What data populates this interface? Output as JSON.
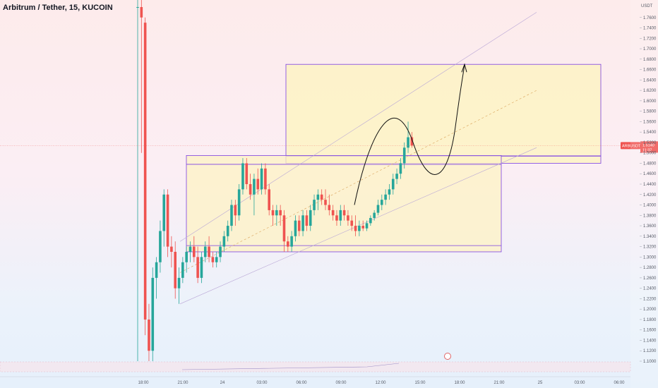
{
  "header": {
    "title": "Arbitrum / Tether, 15, KUCOIN"
  },
  "colors": {
    "up": "#26a69a",
    "down": "#ef5350",
    "zone_fill": "#fdf3c4",
    "zone_border": "#7b3fe4",
    "current_price": "#ef5350"
  },
  "chart_data": {
    "type": "candlestick",
    "title": "Arbitrum / Tether, 15, KUCOIN",
    "y_unit_label": "USDT",
    "ylim": [
      1.1,
      1.8
    ],
    "y_ticks": [
      "1.1000",
      "1.1200",
      "1.1400",
      "1.1600",
      "1.1800",
      "1.2000",
      "1.2200",
      "1.2400",
      "1.2600",
      "1.2800",
      "1.3000",
      "1.3200",
      "1.3400",
      "1.3600",
      "1.3800",
      "1.4000",
      "1.4200",
      "1.4400",
      "1.4600",
      "1.4800",
      "1.5000",
      "1.5200",
      "1.5400",
      "1.5600",
      "1.5800",
      "1.6000",
      "1.6200",
      "1.6400",
      "1.6600",
      "1.6800",
      "1.7000",
      "1.7200",
      "1.7400",
      "1.7600",
      "1.7800"
    ],
    "x_ticks": [
      "18:00",
      "21:00",
      "24",
      "03:00",
      "06:00",
      "09:00",
      "12:00",
      "15:00",
      "18:00",
      "21:00",
      "25",
      "03:00",
      "06:00"
    ],
    "current_price": {
      "symbol": "ARBUSDT",
      "value": "1.5140",
      "countdown": "11:37"
    },
    "candles": [
      {
        "x": "17:00",
        "o": 1.78,
        "h": 1.8,
        "l": 1.1,
        "c": 1.78
      },
      {
        "x": "17:15",
        "o": 1.78,
        "h": 1.8,
        "l": 1.5,
        "c": 1.76
      },
      {
        "x": "17:30",
        "o": 1.75,
        "h": 1.76,
        "l": 1.15,
        "c": 1.18
      },
      {
        "x": "17:45",
        "o": 1.18,
        "h": 1.21,
        "l": 1.1,
        "c": 1.12
      },
      {
        "x": "18:00",
        "o": 1.12,
        "h": 1.28,
        "l": 1.1,
        "c": 1.26
      },
      {
        "x": "18:15",
        "o": 1.26,
        "h": 1.3,
        "l": 1.22,
        "c": 1.29
      },
      {
        "x": "18:30",
        "o": 1.29,
        "h": 1.37,
        "l": 1.27,
        "c": 1.35
      },
      {
        "x": "18:45",
        "o": 1.35,
        "h": 1.43,
        "l": 1.32,
        "c": 1.42
      },
      {
        "x": "19:00",
        "o": 1.42,
        "h": 1.43,
        "l": 1.3,
        "c": 1.32
      },
      {
        "x": "19:15",
        "o": 1.32,
        "h": 1.34,
        "l": 1.28,
        "c": 1.31
      },
      {
        "x": "19:30",
        "o": 1.31,
        "h": 1.33,
        "l": 1.22,
        "c": 1.24
      },
      {
        "x": "19:45",
        "o": 1.24,
        "h": 1.28,
        "l": 1.21,
        "c": 1.26
      },
      {
        "x": "20:00",
        "o": 1.26,
        "h": 1.3,
        "l": 1.25,
        "c": 1.29
      },
      {
        "x": "20:15",
        "o": 1.29,
        "h": 1.32,
        "l": 1.27,
        "c": 1.31
      },
      {
        "x": "20:30",
        "o": 1.31,
        "h": 1.33,
        "l": 1.29,
        "c": 1.32
      },
      {
        "x": "20:45",
        "o": 1.32,
        "h": 1.34,
        "l": 1.29,
        "c": 1.3
      },
      {
        "x": "21:00",
        "o": 1.3,
        "h": 1.32,
        "l": 1.25,
        "c": 1.26
      },
      {
        "x": "21:15",
        "o": 1.26,
        "h": 1.31,
        "l": 1.25,
        "c": 1.3
      },
      {
        "x": "21:30",
        "o": 1.3,
        "h": 1.33,
        "l": 1.29,
        "c": 1.32
      },
      {
        "x": "21:45",
        "o": 1.32,
        "h": 1.34,
        "l": 1.29,
        "c": 1.3
      },
      {
        "x": "22:00",
        "o": 1.3,
        "h": 1.31,
        "l": 1.28,
        "c": 1.29
      },
      {
        "x": "22:15",
        "o": 1.29,
        "h": 1.31,
        "l": 1.28,
        "c": 1.3
      },
      {
        "x": "22:30",
        "o": 1.3,
        "h": 1.33,
        "l": 1.29,
        "c": 1.32
      },
      {
        "x": "22:45",
        "o": 1.32,
        "h": 1.35,
        "l": 1.31,
        "c": 1.34
      },
      {
        "x": "23:00",
        "o": 1.34,
        "h": 1.37,
        "l": 1.33,
        "c": 1.36
      },
      {
        "x": "23:15",
        "o": 1.36,
        "h": 1.41,
        "l": 1.35,
        "c": 1.4
      },
      {
        "x": "23:30",
        "o": 1.4,
        "h": 1.41,
        "l": 1.36,
        "c": 1.38
      },
      {
        "x": "23:45",
        "o": 1.38,
        "h": 1.44,
        "l": 1.37,
        "c": 1.43
      },
      {
        "x": "00:00",
        "o": 1.43,
        "h": 1.49,
        "l": 1.42,
        "c": 1.48
      },
      {
        "x": "00:15",
        "o": 1.48,
        "h": 1.49,
        "l": 1.43,
        "c": 1.44
      },
      {
        "x": "00:30",
        "o": 1.44,
        "h": 1.46,
        "l": 1.41,
        "c": 1.42
      },
      {
        "x": "00:45",
        "o": 1.42,
        "h": 1.46,
        "l": 1.38,
        "c": 1.45
      },
      {
        "x": "01:00",
        "o": 1.45,
        "h": 1.47,
        "l": 1.42,
        "c": 1.43
      },
      {
        "x": "01:15",
        "o": 1.43,
        "h": 1.48,
        "l": 1.42,
        "c": 1.47
      },
      {
        "x": "01:30",
        "o": 1.47,
        "h": 1.48,
        "l": 1.42,
        "c": 1.43
      },
      {
        "x": "01:45",
        "o": 1.43,
        "h": 1.44,
        "l": 1.38,
        "c": 1.39
      },
      {
        "x": "02:00",
        "o": 1.39,
        "h": 1.4,
        "l": 1.36,
        "c": 1.38
      },
      {
        "x": "02:15",
        "o": 1.38,
        "h": 1.4,
        "l": 1.36,
        "c": 1.39
      },
      {
        "x": "02:30",
        "o": 1.39,
        "h": 1.4,
        "l": 1.36,
        "c": 1.38
      },
      {
        "x": "02:45",
        "o": 1.38,
        "h": 1.39,
        "l": 1.31,
        "c": 1.33
      },
      {
        "x": "03:00",
        "o": 1.33,
        "h": 1.34,
        "l": 1.31,
        "c": 1.32
      },
      {
        "x": "03:15",
        "o": 1.32,
        "h": 1.35,
        "l": 1.31,
        "c": 1.34
      },
      {
        "x": "03:30",
        "o": 1.34,
        "h": 1.38,
        "l": 1.33,
        "c": 1.37
      },
      {
        "x": "03:45",
        "o": 1.37,
        "h": 1.38,
        "l": 1.34,
        "c": 1.35
      },
      {
        "x": "04:00",
        "o": 1.35,
        "h": 1.39,
        "l": 1.34,
        "c": 1.38
      },
      {
        "x": "04:15",
        "o": 1.38,
        "h": 1.39,
        "l": 1.35,
        "c": 1.36
      },
      {
        "x": "04:30",
        "o": 1.36,
        "h": 1.4,
        "l": 1.35,
        "c": 1.39
      },
      {
        "x": "04:45",
        "o": 1.39,
        "h": 1.42,
        "l": 1.38,
        "c": 1.41
      },
      {
        "x": "05:00",
        "o": 1.41,
        "h": 1.43,
        "l": 1.39,
        "c": 1.42
      },
      {
        "x": "05:15",
        "o": 1.42,
        "h": 1.43,
        "l": 1.4,
        "c": 1.41
      },
      {
        "x": "05:30",
        "o": 1.41,
        "h": 1.43,
        "l": 1.39,
        "c": 1.4
      },
      {
        "x": "05:45",
        "o": 1.4,
        "h": 1.42,
        "l": 1.38,
        "c": 1.39
      },
      {
        "x": "06:00",
        "o": 1.39,
        "h": 1.4,
        "l": 1.37,
        "c": 1.38
      },
      {
        "x": "06:15",
        "o": 1.38,
        "h": 1.39,
        "l": 1.36,
        "c": 1.37
      },
      {
        "x": "06:30",
        "o": 1.37,
        "h": 1.4,
        "l": 1.36,
        "c": 1.39
      },
      {
        "x": "06:45",
        "o": 1.39,
        "h": 1.4,
        "l": 1.37,
        "c": 1.38
      },
      {
        "x": "07:00",
        "o": 1.38,
        "h": 1.39,
        "l": 1.36,
        "c": 1.37
      },
      {
        "x": "07:15",
        "o": 1.37,
        "h": 1.38,
        "l": 1.35,
        "c": 1.36
      },
      {
        "x": "07:30",
        "o": 1.36,
        "h": 1.38,
        "l": 1.34,
        "c": 1.35
      },
      {
        "x": "07:45",
        "o": 1.35,
        "h": 1.37,
        "l": 1.34,
        "c": 1.36
      },
      {
        "x": "08:00",
        "o": 1.36,
        "h": 1.37,
        "l": 1.35,
        "c": 1.355
      },
      {
        "x": "08:15",
        "o": 1.355,
        "h": 1.37,
        "l": 1.35,
        "c": 1.365
      },
      {
        "x": "08:30",
        "o": 1.365,
        "h": 1.38,
        "l": 1.36,
        "c": 1.375
      },
      {
        "x": "08:45",
        "o": 1.375,
        "h": 1.39,
        "l": 1.37,
        "c": 1.385
      },
      {
        "x": "09:00",
        "o": 1.385,
        "h": 1.41,
        "l": 1.38,
        "c": 1.4
      },
      {
        "x": "09:15",
        "o": 1.4,
        "h": 1.42,
        "l": 1.39,
        "c": 1.41
      },
      {
        "x": "09:30",
        "o": 1.41,
        "h": 1.43,
        "l": 1.4,
        "c": 1.42
      },
      {
        "x": "09:45",
        "o": 1.42,
        "h": 1.44,
        "l": 1.41,
        "c": 1.43
      },
      {
        "x": "10:00",
        "o": 1.43,
        "h": 1.46,
        "l": 1.42,
        "c": 1.45
      },
      {
        "x": "10:15",
        "o": 1.45,
        "h": 1.47,
        "l": 1.44,
        "c": 1.46
      },
      {
        "x": "10:30",
        "o": 1.46,
        "h": 1.49,
        "l": 1.45,
        "c": 1.48
      },
      {
        "x": "10:45",
        "o": 1.48,
        "h": 1.52,
        "l": 1.47,
        "c": 1.51
      },
      {
        "x": "11:00",
        "o": 1.51,
        "h": 1.56,
        "l": 1.5,
        "c": 1.53
      },
      {
        "x": "11:15",
        "o": 1.53,
        "h": 1.54,
        "l": 1.51,
        "c": 1.514
      }
    ]
  },
  "zones": {
    "upper": {
      "top": 1.67,
      "bottom": 1.48,
      "label": ""
    },
    "lower": {
      "top": 1.495,
      "bottom": 1.31,
      "label": ""
    }
  }
}
